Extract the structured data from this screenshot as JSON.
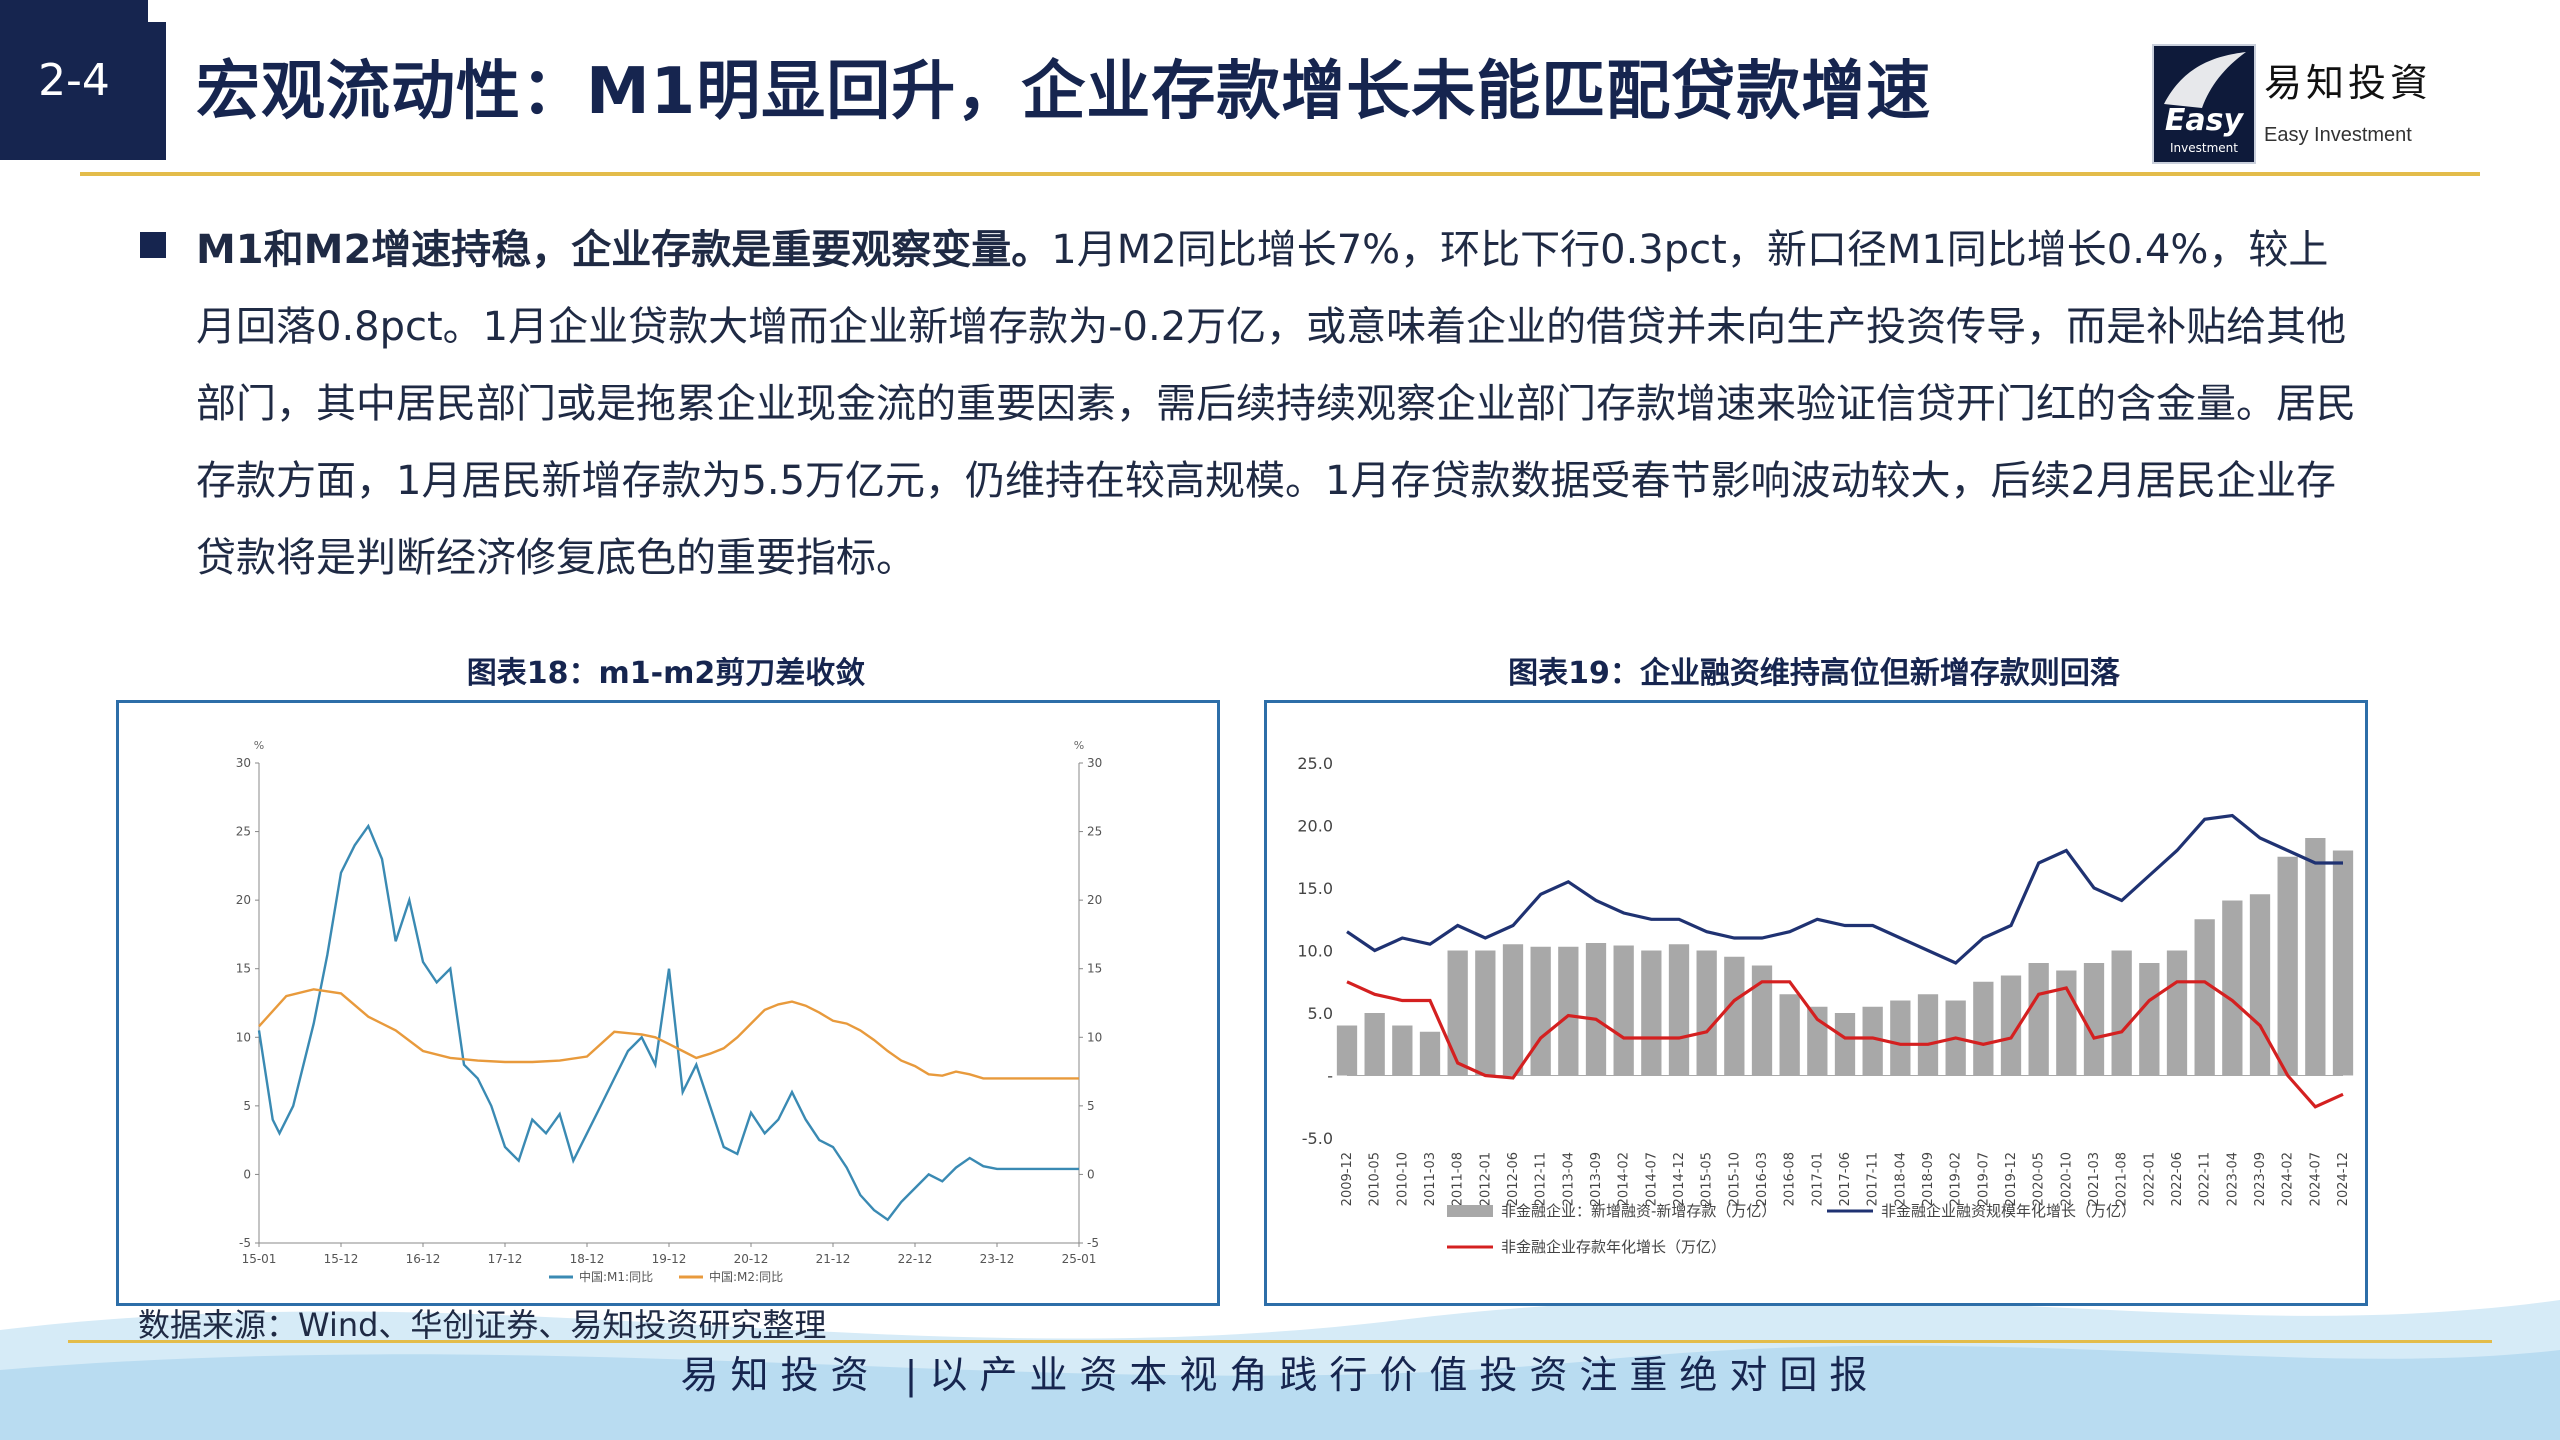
{
  "header": {
    "slide_number": "2-4",
    "title": "宏观流动性：M1明显回升，企业存款增长未能匹配贷款增速",
    "logo_cn": "易知投資",
    "logo_en": "Easy Investment",
    "logo_mark_text": "Easy",
    "logo_mark_sub": "Investment"
  },
  "body": {
    "lead": "M1和M2增速持稳，企业存款是重要观察变量。",
    "text": "1月M2同比增长7%，环比下行0.3pct，新口径M1同比增长0.4%，较上月回落0.8pct。1月企业贷款大增而企业新增存款为-0.2万亿，或意味着企业的借贷并未向生产投资传导，而是补贴给其他部门，其中居民部门或是拖累企业现金流的重要因素，需后续持续观察企业部门存款增速来验证信贷开门红的含金量。居民存款方面，1月居民新增存款为5.5万亿元，仍维持在较高规模。1月存贷款数据受春节影响波动较大，后续2月居民企业存贷款将是判断经济修复底色的重要指标。"
  },
  "charts": {
    "left_title": "图表18：m1-m2剪刀差收敛",
    "right_title": "图表19：企业融资维持高位但新增存款则回落"
  },
  "chart_data": [
    {
      "type": "line",
      "title": "图表18：m1-m2剪刀差收敛",
      "unit_left": "%",
      "unit_right": "%",
      "ylim": [
        -5,
        30
      ],
      "y_ticks": [
        -5,
        0,
        5,
        10,
        15,
        20,
        25,
        30
      ],
      "x_ticks": [
        "15-01",
        "15-12",
        "16-12",
        "17-12",
        "18-12",
        "19-12",
        "20-12",
        "21-12",
        "22-12",
        "23-12",
        "25-01"
      ],
      "series": [
        {
          "name": "中国:M1:同比",
          "color": "#3a8ab3",
          "x": [
            0,
            2,
            3,
            5,
            8,
            10,
            12,
            14,
            16,
            18,
            20,
            22,
            24,
            26,
            28,
            30,
            32,
            34,
            36,
            38,
            40,
            42,
            44,
            46,
            48,
            50,
            52,
            54,
            56,
            58,
            60,
            62,
            64,
            66,
            68,
            70,
            72,
            74,
            76,
            78,
            80,
            82,
            84,
            86,
            88,
            90,
            92,
            94,
            96,
            98,
            100,
            102,
            104,
            106,
            108,
            110,
            112,
            114,
            116,
            118,
            120
          ],
          "values": [
            10.5,
            4,
            3,
            5,
            11,
            16,
            22,
            24,
            25.4,
            23,
            17,
            20,
            15.5,
            14,
            15,
            8,
            7,
            5,
            2,
            1,
            4,
            3,
            4.4,
            1,
            3,
            5,
            7,
            9,
            10,
            8,
            15,
            6,
            8,
            5,
            2,
            1.5,
            4.5,
            3,
            4,
            6,
            4,
            2.5,
            2,
            0.5,
            -1.5,
            -2.6,
            -3.3,
            -2,
            -1,
            0,
            -0.5,
            0.5,
            1.2,
            0.6,
            0.4,
            0.4,
            0.4,
            0.4,
            0.4,
            0.4,
            0.4
          ]
        },
        {
          "name": "中国:M2:同比",
          "color": "#e89a3c",
          "x": [
            0,
            4,
            8,
            12,
            16,
            20,
            24,
            28,
            32,
            36,
            40,
            44,
            48,
            52,
            56,
            58,
            60,
            62,
            64,
            66,
            68,
            70,
            72,
            74,
            76,
            78,
            80,
            82,
            84,
            86,
            88,
            90,
            92,
            94,
            96,
            98,
            100,
            102,
            104,
            106,
            108,
            110,
            112,
            114,
            116,
            118,
            120
          ],
          "values": [
            10.8,
            13,
            13.5,
            13.2,
            11.5,
            10.5,
            9,
            8.5,
            8.3,
            8.2,
            8.2,
            8.3,
            8.6,
            10.4,
            10.2,
            10,
            9.5,
            9,
            8.5,
            8.8,
            9.2,
            10,
            11,
            12,
            12.4,
            12.6,
            12.3,
            11.8,
            11.2,
            11,
            10.5,
            9.8,
            9,
            8.3,
            7.9,
            7.3,
            7.2,
            7.5,
            7.3,
            7,
            7,
            7,
            7,
            7,
            7,
            7,
            7
          ]
        }
      ]
    },
    {
      "type": "bar+line",
      "title": "图表19：企业融资维持高位但新增存款则回落",
      "ylim": [
        -5,
        25
      ],
      "y_ticks": [
        -5,
        0,
        5,
        10,
        15,
        20,
        25
      ],
      "y_tick_labels": [
        "-5.0",
        "-",
        "5.0",
        "10.0",
        "15.0",
        "20.0",
        "25.0"
      ],
      "x_ticks": [
        "2009-12",
        "2010-05",
        "2010-10",
        "2011-03",
        "2011-08",
        "2012-01",
        "2012-06",
        "2012-11",
        "2013-04",
        "2013-09",
        "2014-02",
        "2014-07",
        "2014-12",
        "2015-05",
        "2015-10",
        "2016-03",
        "2016-08",
        "2017-01",
        "2017-06",
        "2017-11",
        "2018-04",
        "2018-09",
        "2019-02",
        "2019-07",
        "2019-12",
        "2020-05",
        "2020-10",
        "2021-03",
        "2021-08",
        "2022-01",
        "2022-06",
        "2022-11",
        "2023-04",
        "2023-09",
        "2024-02",
        "2024-07",
        "2024-12"
      ],
      "legend": [
        {
          "name": "非金融企业：新增融资-新增存款（万亿）",
          "color": "#a8a8a8",
          "kind": "bar"
        },
        {
          "name": "非金融企业融资规模年化增长（万亿）",
          "color": "#1f3272",
          "kind": "line"
        },
        {
          "name": "非金融企业存款年化增长（万亿）",
          "color": "#d42020",
          "kind": "line"
        }
      ],
      "series": [
        {
          "name": "非金融企业：新增融资-新增存款（万亿）",
          "color": "#a8a8a8",
          "x": [
            0,
            3,
            6,
            9,
            12,
            15,
            18,
            21,
            24,
            27,
            30,
            33,
            36,
            39,
            42,
            45,
            48,
            51,
            54,
            57,
            60,
            63,
            66,
            69,
            72,
            75,
            78,
            81,
            84,
            87,
            90,
            93,
            96,
            99,
            102,
            105,
            108
          ],
          "values": [
            4,
            5,
            4,
            3.5,
            10,
            10,
            10.5,
            10.3,
            10.3,
            10.6,
            10.4,
            10,
            10.5,
            10,
            9.5,
            8.8,
            6.5,
            5.5,
            5,
            5.5,
            6,
            6.5,
            6,
            7.5,
            8,
            9,
            8.4,
            9,
            10,
            9,
            10,
            12.5,
            14,
            14.5,
            17.5,
            19,
            18
          ]
        },
        {
          "name": "非金融企业融资规模年化增长（万亿）",
          "color": "#1f3272",
          "x": [
            0,
            3,
            6,
            9,
            12,
            15,
            18,
            21,
            24,
            27,
            30,
            33,
            36,
            39,
            42,
            45,
            48,
            51,
            54,
            57,
            60,
            63,
            66,
            69,
            72,
            75,
            78,
            81,
            84,
            87,
            90,
            93,
            96,
            99,
            102,
            105,
            108
          ],
          "values": [
            11.5,
            10,
            11,
            10.5,
            12,
            11,
            12,
            14.5,
            15.5,
            14,
            13,
            12.5,
            12.5,
            11.5,
            11,
            11,
            11.5,
            12.5,
            12,
            12,
            11,
            10,
            9,
            11,
            12,
            17,
            18,
            15,
            14,
            16,
            18,
            20.5,
            20.8,
            19,
            18,
            17,
            17
          ]
        },
        {
          "name": "非金融企业存款年化增长（万亿）",
          "color": "#d42020",
          "x": [
            0,
            3,
            6,
            9,
            12,
            15,
            18,
            21,
            24,
            27,
            30,
            33,
            36,
            39,
            42,
            45,
            48,
            51,
            54,
            57,
            60,
            63,
            66,
            69,
            72,
            75,
            78,
            81,
            84,
            87,
            90,
            93,
            96,
            99,
            102,
            105,
            108
          ],
          "values": [
            7.5,
            6.5,
            6,
            6,
            1,
            0,
            -0.2,
            3,
            4.8,
            4.5,
            3,
            3,
            3,
            3.5,
            6,
            7.5,
            7.5,
            4.5,
            3,
            3,
            2.5,
            2.5,
            3,
            2.5,
            3,
            6.5,
            7,
            3,
            3.5,
            6,
            7.5,
            7.5,
            6,
            4,
            0,
            -2.5,
            -1.5
          ]
        }
      ]
    }
  ],
  "source": "数据来源：Wind、华创证券、易知投资研究整理",
  "footer": "易知投资 |以产业资本视角践行价值投资注重绝对回报"
}
